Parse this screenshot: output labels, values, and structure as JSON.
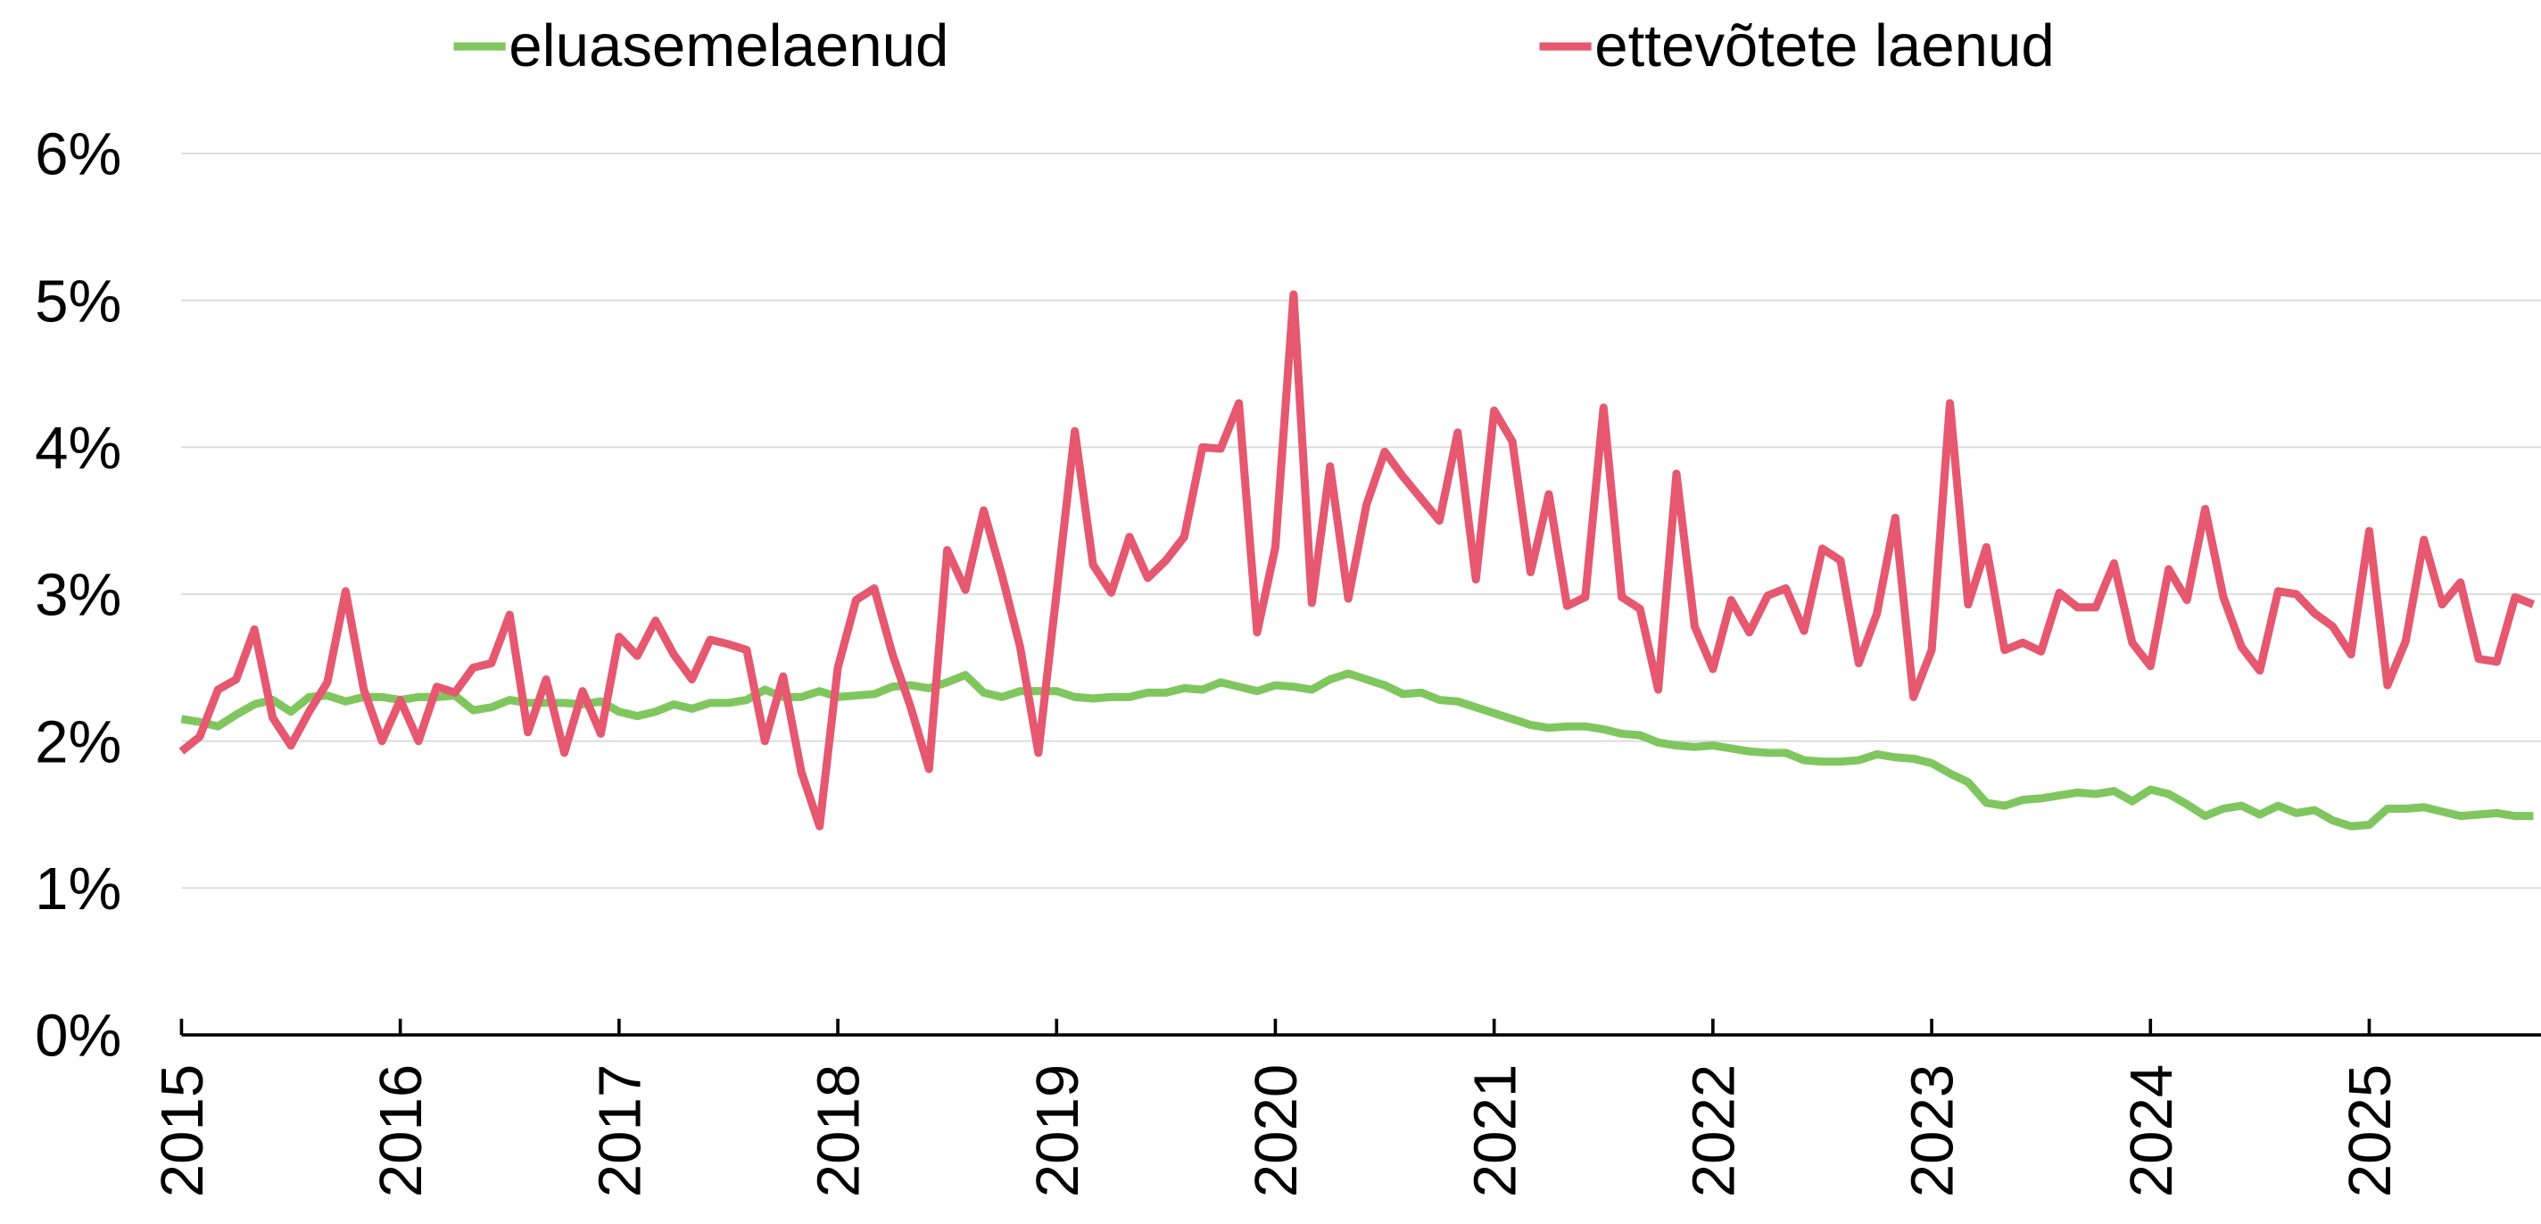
{
  "chart_data": {
    "type": "line",
    "categories": [
      "2015",
      null,
      null,
      null,
      null,
      null,
      null,
      null,
      null,
      null,
      null,
      null,
      "2016",
      null,
      null,
      null,
      null,
      null,
      null,
      null,
      null,
      null,
      null,
      null,
      "2017",
      null,
      null,
      null,
      null,
      null,
      null,
      null,
      null,
      null,
      null,
      null,
      "2018",
      null,
      null,
      null,
      null,
      null,
      null,
      null,
      null,
      null,
      null,
      null,
      "2019",
      null,
      null,
      null,
      null,
      null,
      null,
      null,
      null,
      null,
      null,
      null,
      "2020",
      null,
      null,
      null,
      null,
      null,
      null,
      null,
      null,
      null,
      null,
      null,
      "2021",
      null,
      null,
      null,
      null,
      null,
      null,
      null,
      null,
      null,
      null,
      null,
      "2022",
      null,
      null,
      null,
      null,
      null,
      null,
      null,
      null,
      null,
      null,
      null,
      "2023",
      null,
      null,
      null,
      null,
      null,
      null,
      null,
      null,
      null,
      null,
      null,
      "2024",
      null,
      null,
      null,
      null,
      null,
      null,
      null,
      null,
      null,
      null,
      null,
      "2025",
      null,
      null,
      null,
      null,
      null,
      null,
      null,
      null,
      null
    ],
    "series": [
      {
        "name": "eluasemelaenud",
        "color": "#80c65f",
        "values": [
          2.15,
          2.13,
          2.1,
          2.18,
          2.25,
          2.28,
          2.2,
          2.3,
          2.31,
          2.27,
          2.3,
          2.3,
          2.28,
          2.3,
          2.3,
          2.31,
          2.21,
          2.23,
          2.28,
          2.26,
          2.26,
          2.26,
          2.25,
          2.27,
          2.2,
          2.17,
          2.2,
          2.25,
          2.22,
          2.26,
          2.26,
          2.28,
          2.35,
          2.3,
          2.3,
          2.34,
          2.3,
          2.31,
          2.32,
          2.37,
          2.38,
          2.36,
          2.4,
          2.45,
          2.33,
          2.3,
          2.34,
          2.34,
          2.34,
          2.3,
          2.29,
          2.3,
          2.3,
          2.33,
          2.33,
          2.36,
          2.35,
          2.4,
          2.37,
          2.34,
          2.38,
          2.37,
          2.35,
          2.42,
          2.46,
          2.42,
          2.38,
          2.32,
          2.33,
          2.28,
          2.27,
          2.23,
          2.19,
          2.15,
          2.11,
          2.09,
          2.1,
          2.1,
          2.08,
          2.05,
          2.04,
          1.99,
          1.97,
          1.96,
          1.97,
          1.95,
          1.93,
          1.92,
          1.92,
          1.87,
          1.86,
          1.86,
          1.87,
          1.91,
          1.89,
          1.88,
          1.85,
          1.78,
          1.72,
          1.58,
          1.56,
          1.6,
          1.61,
          1.63,
          1.65,
          1.64,
          1.66,
          1.59,
          1.67,
          1.64,
          1.57,
          1.49,
          1.54,
          1.56,
          1.5,
          1.56,
          1.51,
          1.53,
          1.46,
          1.42,
          1.43,
          1.54,
          1.54,
          1.55,
          1.52,
          1.49,
          1.5,
          1.51,
          1.49,
          1.49
        ]
      },
      {
        "name": "ettevõtete laenud",
        "color": "#e5586f",
        "values": [
          1.93,
          2.03,
          2.35,
          2.42,
          2.76,
          2.16,
          1.97,
          2.2,
          2.4,
          3.02,
          2.35,
          2.0,
          2.28,
          2.0,
          2.37,
          2.33,
          2.5,
          2.53,
          2.86,
          2.06,
          2.42,
          1.92,
          2.34,
          2.05,
          2.71,
          2.58,
          2.82,
          2.59,
          2.42,
          2.69,
          2.66,
          2.62,
          2.0,
          2.44,
          1.79,
          1.42,
          2.5,
          2.96,
          3.04,
          2.59,
          2.23,
          1.81,
          3.3,
          3.03,
          3.57,
          3.13,
          2.64,
          1.92,
          3.01,
          4.11,
          3.2,
          3.01,
          3.39,
          3.11,
          3.23,
          3.39,
          4.0,
          3.99,
          4.3,
          2.74,
          3.32,
          5.04,
          2.94,
          3.87,
          2.97,
          3.61,
          3.97,
          3.8,
          3.65,
          3.5,
          4.1,
          3.1,
          4.25,
          4.04,
          3.15,
          3.68,
          2.92,
          2.98,
          4.27,
          2.98,
          2.9,
          2.35,
          3.82,
          2.78,
          2.49,
          2.96,
          2.74,
          2.99,
          3.04,
          2.75,
          3.31,
          3.23,
          2.53,
          2.87,
          3.52,
          2.3,
          2.62,
          4.3,
          2.93,
          3.32,
          2.62,
          2.67,
          2.61,
          3.01,
          2.91,
          2.91,
          3.21,
          2.67,
          2.51,
          3.17,
          2.96,
          3.58,
          2.98,
          2.64,
          2.48,
          3.02,
          3.0,
          2.87,
          2.78,
          2.59,
          3.43,
          2.38,
          2.68,
          3.37,
          2.93,
          3.08,
          2.56,
          2.54,
          2.98,
          2.93
        ]
      }
    ],
    "ylim": [
      0,
      6
    ],
    "yticks": [
      {
        "value": 0,
        "label": "0%"
      },
      {
        "value": 1,
        "label": "1%"
      },
      {
        "value": 2,
        "label": "2%"
      },
      {
        "value": 3,
        "label": "3%"
      },
      {
        "value": 4,
        "label": "4%"
      },
      {
        "value": 5,
        "label": "5%"
      },
      {
        "value": 6,
        "label": "6%"
      }
    ],
    "grid": true,
    "legend": "top"
  }
}
